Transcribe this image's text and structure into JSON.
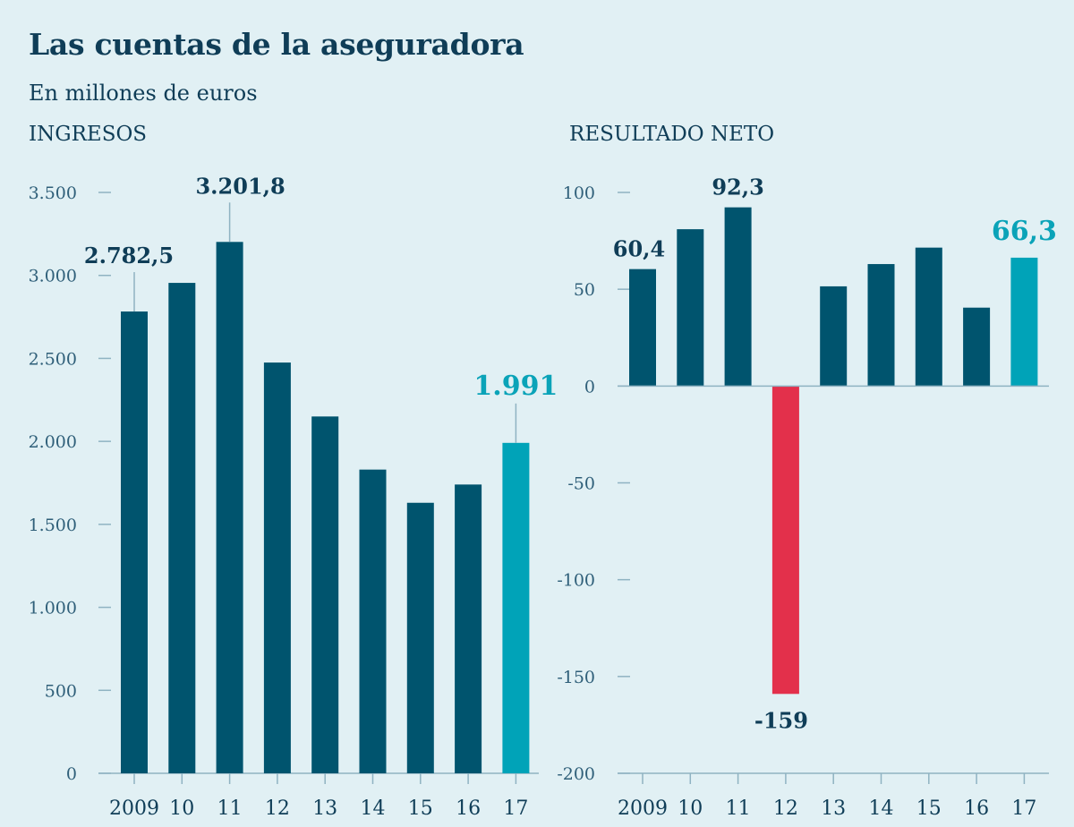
{
  "title": "Las cuentas de la aseguradora",
  "subtitle": "En millones de euros",
  "colors": {
    "background": "#e1f0f4",
    "bar": "#00546e",
    "highlight": "#00a3b8",
    "negative": "#e3304b",
    "grid": "#8fb3c2"
  },
  "chart_data": [
    {
      "type": "bar",
      "title": "INGRESOS",
      "categories": [
        "2009",
        "10",
        "11",
        "12",
        "13",
        "14",
        "15",
        "16",
        "17"
      ],
      "values": [
        2782.5,
        2955,
        3201.8,
        2475,
        2150,
        1830,
        1630,
        1740,
        1991
      ],
      "ylim": [
        0,
        3500
      ],
      "yticks": [
        0,
        500,
        1000,
        1500,
        2000,
        2500,
        3000,
        3500
      ],
      "ytick_labels": [
        "0",
        "500",
        "1.000",
        "1.500",
        "2.000",
        "2.500",
        "3.000",
        "3.500"
      ],
      "highlight_index": 8,
      "annotations": [
        {
          "index": 0,
          "text": "2.782,5"
        },
        {
          "index": 2,
          "text": "3.201,8"
        },
        {
          "index": 8,
          "text": "1.991"
        }
      ]
    },
    {
      "type": "bar",
      "title": "RESULTADO NETO",
      "categories": [
        "2009",
        "10",
        "11",
        "12",
        "13",
        "14",
        "15",
        "16",
        "17"
      ],
      "values": [
        60.4,
        81,
        92.3,
        -159,
        51.5,
        63,
        71.5,
        40.5,
        66.3
      ],
      "ylim": [
        -200,
        100
      ],
      "yticks": [
        -200,
        -150,
        -100,
        -50,
        0,
        50,
        100
      ],
      "ytick_labels": [
        "-200",
        "-150",
        "-100",
        "-50",
        "0",
        "50",
        "100"
      ],
      "highlight_index": 8,
      "negative_index": 3,
      "annotations": [
        {
          "index": 0,
          "text": "60,4"
        },
        {
          "index": 2,
          "text": "92,3"
        },
        {
          "index": 3,
          "text": "-159"
        },
        {
          "index": 8,
          "text": "66,3"
        }
      ]
    }
  ]
}
